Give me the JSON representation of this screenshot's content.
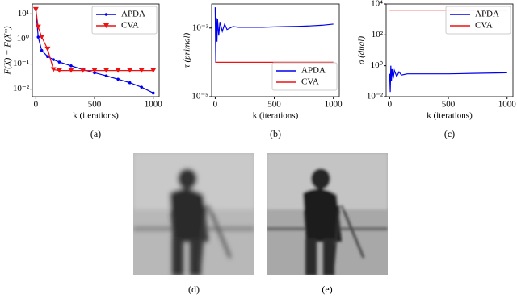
{
  "chart_data": [
    {
      "type": "line",
      "caption": "(a)",
      "xlabel": "k (iterations)",
      "ylabel": "F(X) − F(X*)",
      "log_y": true,
      "legend": "upper right",
      "xlim": [
        -30,
        1050
      ],
      "xticks": [
        0,
        500,
        1000
      ],
      "ylim": [
        0.005,
        25
      ],
      "yticks": [
        {
          "value": 10,
          "label": "10¹"
        },
        {
          "value": 1,
          "label": "10⁰"
        },
        {
          "value": 0.1,
          "label": "10⁻¹"
        },
        {
          "value": 0.01,
          "label": "10⁻²"
        }
      ],
      "x": [
        0,
        20,
        50,
        100,
        150,
        200,
        300,
        400,
        500,
        600,
        700,
        800,
        900,
        1000
      ],
      "series": [
        {
          "name": "APDA",
          "color": "#0000ee",
          "marker": "circle",
          "values": [
            15,
            1.2,
            0.35,
            0.2,
            0.15,
            0.12,
            0.085,
            0.06,
            0.045,
            0.034,
            0.025,
            0.018,
            0.012,
            0.007
          ]
        },
        {
          "name": "CVA",
          "color": "#ee1111",
          "marker": "triangle-down",
          "values": [
            15,
            3,
            1.2,
            0.4,
            0.06,
            0.055,
            0.055,
            0.055,
            0.055,
            0.055,
            0.055,
            0.055,
            0.055,
            0.055
          ]
        }
      ]
    },
    {
      "type": "line",
      "caption": "(b)",
      "xlabel": "k (iterations)",
      "ylabel": "τ (primal)",
      "log_y": true,
      "legend": "lower right",
      "xlim": [
        -30,
        1050
      ],
      "xticks": [
        0,
        500,
        1000
      ],
      "ylim": [
        1e-05,
        0.005
      ],
      "yticks": [
        {
          "value": 0.001,
          "label": "10⁻³"
        },
        {
          "value": 1e-05,
          "label": "10⁻⁵"
        }
      ],
      "x": [
        0,
        5,
        10,
        15,
        20,
        30,
        40,
        60,
        80,
        100,
        150,
        200,
        300,
        400,
        500,
        600,
        700,
        800,
        900,
        1000
      ],
      "series": [
        {
          "name": "APDA",
          "color": "#0000ee",
          "values": [
            0.004,
            0.0001,
            0.002,
            0.0004,
            0.0018,
            0.0006,
            0.0015,
            0.0008,
            0.0013,
            0.0009,
            0.0011,
            0.00105,
            0.00105,
            0.00105,
            0.00108,
            0.0011,
            0.00112,
            0.00115,
            0.0012,
            0.0013
          ]
        },
        {
          "name": "CVA",
          "color": "#ee1111",
          "values": [
            0.0001,
            0.0001,
            0.0001,
            0.0001,
            0.0001,
            0.0001,
            0.0001,
            0.0001,
            0.0001,
            0.0001,
            0.0001,
            0.0001,
            0.0001,
            0.0001,
            0.0001,
            0.0001,
            0.0001,
            0.0001,
            0.0001,
            0.0001
          ]
        }
      ]
    },
    {
      "type": "line",
      "caption": "(c)",
      "xlabel": "k (iterations)",
      "ylabel": "σ (dual)",
      "log_y": true,
      "legend": "upper right",
      "xlim": [
        -30,
        1050
      ],
      "xticks": [
        0,
        500,
        1000
      ],
      "ylim": [
        0.01,
        10000
      ],
      "yticks": [
        {
          "value": 10000,
          "label": "10⁴"
        },
        {
          "value": 100,
          "label": "10²"
        },
        {
          "value": 1,
          "label": "10⁰"
        },
        {
          "value": 0.01,
          "label": "10⁻²"
        }
      ],
      "x": [
        0,
        5,
        10,
        15,
        20,
        30,
        40,
        60,
        80,
        100,
        150,
        200,
        300,
        400,
        500,
        600,
        700,
        800,
        900,
        1000
      ],
      "series": [
        {
          "name": "APDA",
          "color": "#0000ee",
          "values": [
            0.3,
            0.02,
            1,
            0.1,
            0.6,
            0.15,
            0.5,
            0.2,
            0.4,
            0.25,
            0.3,
            0.3,
            0.3,
            0.3,
            0.3,
            0.31,
            0.32,
            0.33,
            0.34,
            0.35
          ]
        },
        {
          "name": "CVA",
          "color": "#ee1111",
          "values": [
            4000,
            4000,
            4000,
            4000,
            4000,
            4000,
            4000,
            4000,
            4000,
            4000,
            4000,
            4000,
            4000,
            4000,
            4000,
            4000,
            4000,
            4000,
            4000,
            4000
          ]
        }
      ]
    }
  ],
  "images": [
    {
      "caption": "(d)"
    },
    {
      "caption": "(e)"
    }
  ]
}
